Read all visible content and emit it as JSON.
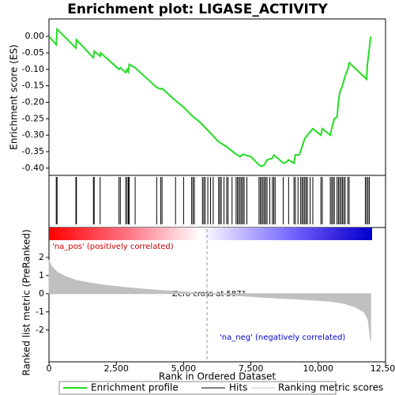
{
  "chart_data": [
    {
      "type": "line",
      "title": "Enrichment plot: LIGASE_ACTIVITY",
      "ylabel": "Enrichment score (ES)",
      "ylim": [
        -0.422,
        0.053
      ],
      "yticks": [
        {
          "value": 0,
          "label": "0.00"
        },
        {
          "value": -0.05,
          "label": "-0.05"
        },
        {
          "value": -0.1,
          "label": "-0.10"
        },
        {
          "value": -0.15,
          "label": "-0.15"
        },
        {
          "value": -0.2,
          "label": "-0.20"
        },
        {
          "value": -0.25,
          "label": "-0.25"
        },
        {
          "value": -0.3,
          "label": "-0.30"
        },
        {
          "value": -0.35,
          "label": "-0.35"
        },
        {
          "value": -0.4,
          "label": "-0.40"
        }
      ],
      "series": [
        {
          "name": "Enrichment profile",
          "color": "#22dd22",
          "x": [
            0,
            270,
            300,
            1000,
            1020,
            1650,
            1680,
            1900,
            1920,
            2600,
            2650,
            2850,
            2900,
            2950,
            2980,
            3200,
            4000,
            4150,
            4200,
            4700,
            5000,
            5300,
            5600,
            5900,
            6300,
            6600,
            6900,
            7000,
            7100,
            7200,
            7500,
            7800,
            7900,
            8000,
            8100,
            8200,
            8300,
            8350,
            8500,
            8700,
            8800,
            8900,
            9000,
            9100,
            9150,
            9300,
            9400,
            9500,
            9600,
            9700,
            9800,
            10100,
            10150,
            10450,
            10500,
            10600,
            10700,
            10750,
            10800,
            10900,
            11000,
            11100,
            11150,
            11800,
            11820,
            11880,
            11950
          ],
          "values": [
            0,
            -0.025,
            0.022,
            -0.035,
            -0.01,
            -0.065,
            -0.045,
            -0.06,
            -0.05,
            -0.1,
            -0.095,
            -0.11,
            -0.1,
            -0.108,
            -0.085,
            -0.095,
            -0.155,
            -0.16,
            -0.158,
            -0.195,
            -0.215,
            -0.24,
            -0.26,
            -0.285,
            -0.32,
            -0.335,
            -0.355,
            -0.36,
            -0.365,
            -0.358,
            -0.365,
            -0.39,
            -0.395,
            -0.39,
            -0.375,
            -0.372,
            -0.37,
            -0.36,
            -0.37,
            -0.385,
            -0.383,
            -0.375,
            -0.38,
            -0.385,
            -0.36,
            -0.36,
            -0.335,
            -0.31,
            -0.3,
            -0.29,
            -0.28,
            -0.3,
            -0.28,
            -0.3,
            -0.28,
            -0.25,
            -0.245,
            -0.2,
            -0.17,
            -0.15,
            -0.12,
            -0.1,
            -0.08,
            -0.13,
            -0.09,
            -0.05,
            0
          ]
        }
      ]
    },
    {
      "type": "rug",
      "series": [
        {
          "name": "Hits",
          "color": "#000000",
          "values": [
            270,
            300,
            1000,
            1020,
            1650,
            1680,
            1900,
            2600,
            2650,
            2850,
            2900,
            2950,
            2980,
            3200,
            4000,
            4150,
            4200,
            4700,
            5000,
            5300,
            5350,
            5400,
            5700,
            5750,
            5800,
            5900,
            6000,
            6100,
            6300,
            6350,
            6400,
            6500,
            6600,
            6650,
            6800,
            6950,
            7000,
            7050,
            7100,
            7150,
            7200,
            7250,
            7350,
            7800,
            7850,
            7900,
            7950,
            8000,
            8050,
            8100,
            8200,
            8300,
            8350,
            8400,
            8700,
            8900,
            9100,
            9150,
            9250,
            9350,
            9400,
            9450,
            9500,
            9550,
            9600,
            9700,
            9800,
            10100,
            10150,
            10450,
            10500,
            10550,
            10600,
            10700,
            10750,
            10800,
            10850,
            10900,
            10950,
            11000,
            11100,
            11150,
            11750,
            11800,
            11850,
            11900
          ]
        }
      ]
    },
    {
      "type": "area",
      "ylabel": "Ranked list metric (PreRanked)",
      "xlabel": "Rank in Ordered Dataset",
      "xlim": [
        0,
        12500
      ],
      "xticks": [
        0,
        {
          "value": 2500,
          "label": "2,500"
        },
        {
          "value": 5000,
          "label": "5,000"
        },
        {
          "value": 7500,
          "label": "7,500"
        },
        {
          "value": 10000,
          "label": "10,000"
        },
        {
          "value": 12500,
          "label": "12,500"
        }
      ],
      "ylim": [
        -3.75,
        2.95
      ],
      "yticks": [
        -2,
        -1,
        0,
        1,
        2
      ],
      "zero_cross": 5871,
      "annotations": {
        "pos": "'na_pos' (positively correlated)",
        "neg": "'na_neg' (negatively correlated)",
        "zero": "Zero cross at 5871"
      },
      "series": [
        {
          "name": "Ranking metric scores",
          "color": "#c0c0c0",
          "x": [
            0,
            100,
            300,
            600,
            1000,
            1500,
            2000,
            3000,
            4000,
            5000,
            5871,
            7000,
            8000,
            9000,
            10000,
            10500,
            11000,
            11400,
            11700,
            11850,
            11950
          ],
          "values": [
            1.85,
            1.5,
            1.2,
            0.95,
            0.75,
            0.6,
            0.48,
            0.32,
            0.2,
            0.1,
            0,
            -0.1,
            -0.2,
            -0.28,
            -0.37,
            -0.42,
            -0.55,
            -0.75,
            -1.0,
            -1.4,
            -2.6
          ]
        }
      ]
    }
  ]
}
